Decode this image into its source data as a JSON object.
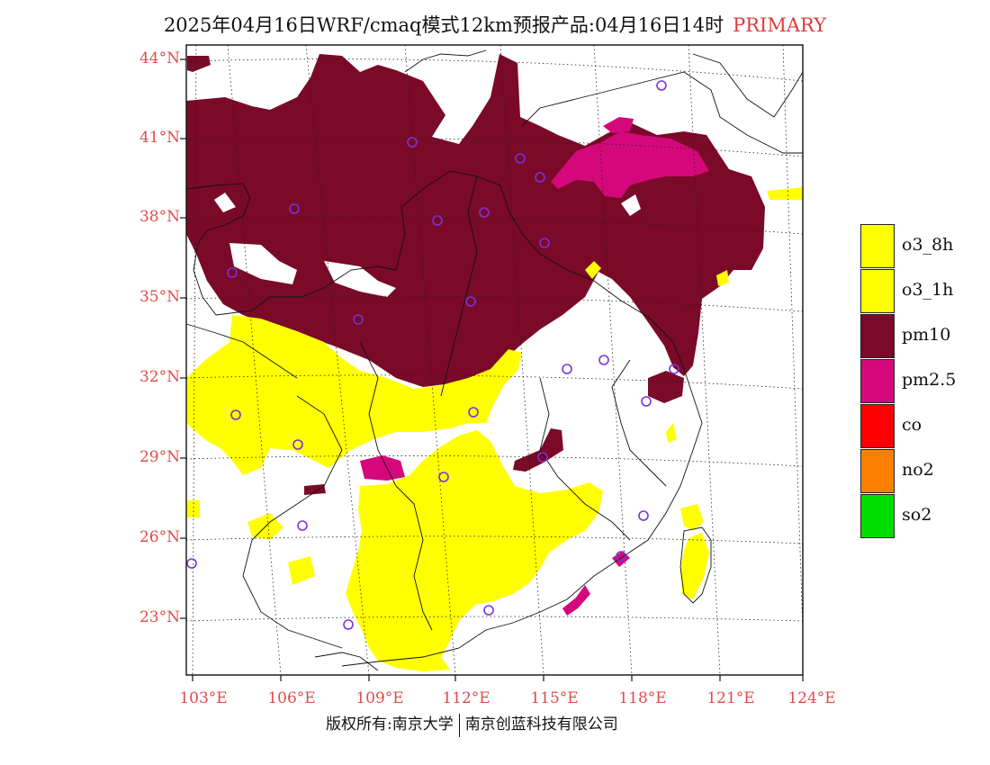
{
  "title": {
    "main": "2025年04月16日WRF/cmaq模式12km预报产品:04月16日14时",
    "tag": "PRIMARY"
  },
  "map": {
    "lat_labels": [
      "44°N",
      "41°N",
      "38°N",
      "35°N",
      "32°N",
      "29°N",
      "26°N",
      "23°N"
    ],
    "lon_labels": [
      "103°E",
      "106°E",
      "109°E",
      "112°E",
      "115°E",
      "118°E",
      "121°E",
      "124°E"
    ]
  },
  "legend": {
    "items": [
      {
        "label": "o3_8h",
        "color": "#ffff00"
      },
      {
        "label": "o3_1h",
        "color": "#ffff00"
      },
      {
        "label": "pm10",
        "color": "#7a0a27"
      },
      {
        "label": "pm2.5",
        "color": "#d4087a"
      },
      {
        "label": "co",
        "color": "#ff0000"
      },
      {
        "label": "no2",
        "color": "#ff8000"
      },
      {
        "label": "so2",
        "color": "#00dd00"
      }
    ]
  },
  "colors": {
    "pm10": "#7a0a27",
    "pm25": "#d4087a",
    "o3": "#ffff00",
    "site": "#7a33d6",
    "label": "#e24b4b"
  },
  "footer": {
    "left": "版权所有:南京大学",
    "right": "南京创蓝科技有限公司"
  }
}
